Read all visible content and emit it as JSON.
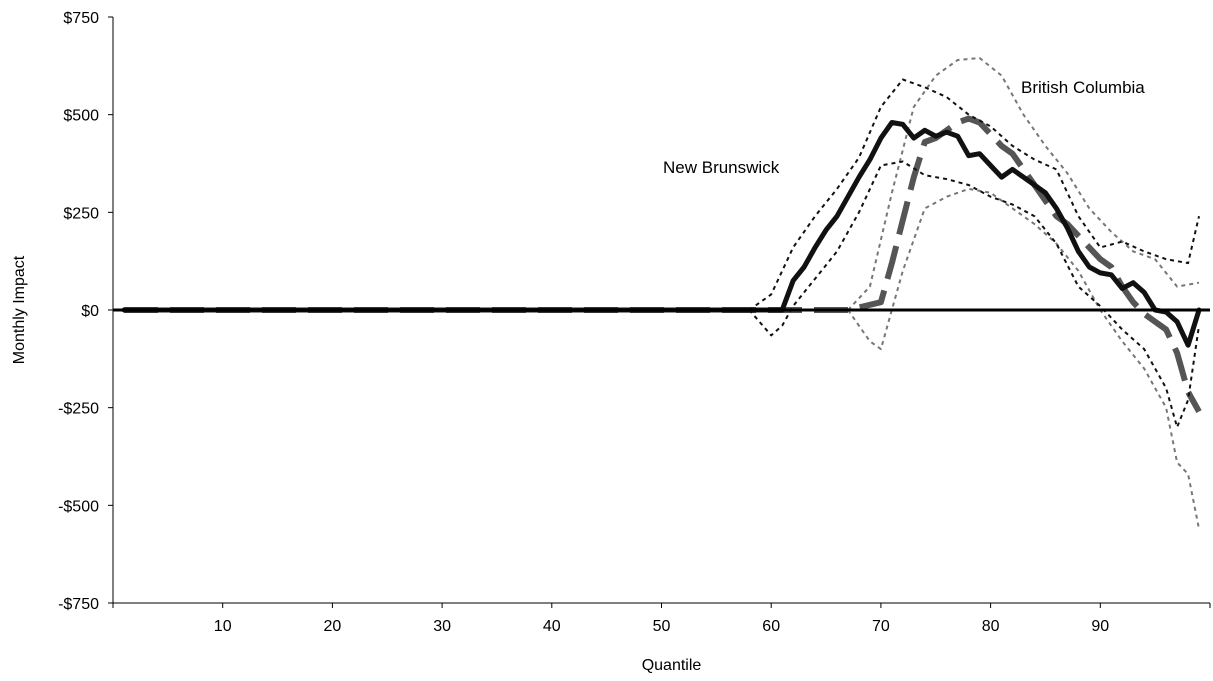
{
  "chart_data": {
    "type": "line",
    "xlabel": "Quantile",
    "ylabel": "Monthly Impact",
    "xlim": [
      0,
      100
    ],
    "ylim": [
      -750,
      750
    ],
    "x_ticks": [
      10,
      20,
      30,
      40,
      50,
      60,
      70,
      80,
      90
    ],
    "y_ticks": [
      {
        "value": 750,
        "label": "$750"
      },
      {
        "value": 500,
        "label": "$500"
      },
      {
        "value": 250,
        "label": "$250"
      },
      {
        "value": 0,
        "label": "$0"
      },
      {
        "value": -250,
        "label": "-$250"
      },
      {
        "value": -500,
        "label": "-$500"
      },
      {
        "value": -750,
        "label": "-$750"
      }
    ],
    "grid": false,
    "annotations": [
      {
        "text": "New Brunswick",
        "x": 57,
        "y": 360
      },
      {
        "text": "British Columbia",
        "x": 84,
        "y": 558
      }
    ],
    "series": [
      {
        "name": "New Brunswick",
        "style": "solid-thick",
        "color": "#111111",
        "x": [
          1,
          58,
          61,
          62,
          63,
          64,
          65,
          66,
          67,
          68,
          69,
          70,
          71,
          72,
          73,
          74,
          75,
          76,
          77,
          78,
          79,
          80,
          81,
          82,
          83,
          84,
          85,
          86,
          87,
          88,
          89,
          90,
          91,
          92,
          93,
          94,
          95,
          96,
          97,
          98,
          99
        ],
        "y": [
          0,
          0,
          0,
          75,
          110,
          160,
          205,
          240,
          290,
          340,
          385,
          440,
          480,
          475,
          440,
          460,
          445,
          455,
          445,
          395,
          400,
          370,
          340,
          360,
          340,
          320,
          300,
          260,
          210,
          150,
          110,
          95,
          90,
          55,
          70,
          45,
          0,
          -5,
          -30,
          -90,
          0
        ]
      },
      {
        "name": "New Brunswick upper bound",
        "style": "dotted",
        "color": "#111111",
        "x": [
          58,
          60,
          62,
          64,
          66,
          68,
          70,
          72,
          74,
          76,
          78,
          80,
          82,
          84,
          86,
          88,
          90,
          92,
          94,
          96,
          98,
          99
        ],
        "y": [
          0,
          40,
          160,
          240,
          310,
          390,
          520,
          590,
          570,
          545,
          500,
          470,
          420,
          385,
          360,
          240,
          160,
          175,
          150,
          130,
          120,
          240
        ]
      },
      {
        "name": "New Brunswick lower bound",
        "style": "dotted",
        "color": "#111111",
        "x": [
          58,
          60,
          61,
          62,
          64,
          66,
          68,
          70,
          72,
          74,
          76,
          78,
          80,
          82,
          84,
          86,
          88,
          90,
          92,
          94,
          96,
          97,
          98,
          99
        ],
        "y": [
          0,
          -65,
          -40,
          10,
          80,
          150,
          250,
          370,
          380,
          345,
          335,
          320,
          290,
          270,
          240,
          170,
          60,
          10,
          -50,
          -100,
          -200,
          -300,
          -230,
          -40
        ]
      },
      {
        "name": "British Columbia",
        "style": "dashed-thick",
        "color": "#555555",
        "x": [
          1,
          67,
          70,
          71,
          72,
          73,
          74,
          75,
          76,
          77,
          78,
          79,
          80,
          81,
          82,
          83,
          84,
          85,
          86,
          87,
          88,
          89,
          90,
          91,
          92,
          93,
          94,
          95,
          96,
          97,
          98,
          99
        ],
        "y": [
          0,
          0,
          20,
          120,
          230,
          340,
          430,
          440,
          460,
          480,
          490,
          480,
          450,
          420,
          400,
          360,
          320,
          280,
          240,
          220,
          190,
          160,
          130,
          110,
          60,
          20,
          -10,
          -30,
          -50,
          -110,
          -210,
          -260
        ]
      },
      {
        "name": "British Columbia upper bound",
        "style": "dotted",
        "color": "#777777",
        "x": [
          67,
          69,
          71,
          73,
          75,
          77,
          79,
          81,
          83,
          85,
          87,
          89,
          91,
          93,
          95,
          97,
          99
        ],
        "y": [
          0,
          60,
          300,
          520,
          600,
          640,
          645,
          600,
          500,
          420,
          350,
          260,
          200,
          150,
          130,
          60,
          70
        ]
      },
      {
        "name": "British Columbia lower bound",
        "style": "dotted",
        "color": "#777777",
        "x": [
          67,
          69,
          70,
          72,
          74,
          76,
          78,
          80,
          82,
          84,
          86,
          88,
          90,
          92,
          94,
          96,
          97,
          98,
          99
        ],
        "y": [
          0,
          -80,
          -100,
          100,
          260,
          290,
          310,
          300,
          260,
          220,
          170,
          100,
          0,
          -80,
          -150,
          -250,
          -390,
          -420,
          -560
        ]
      }
    ]
  }
}
